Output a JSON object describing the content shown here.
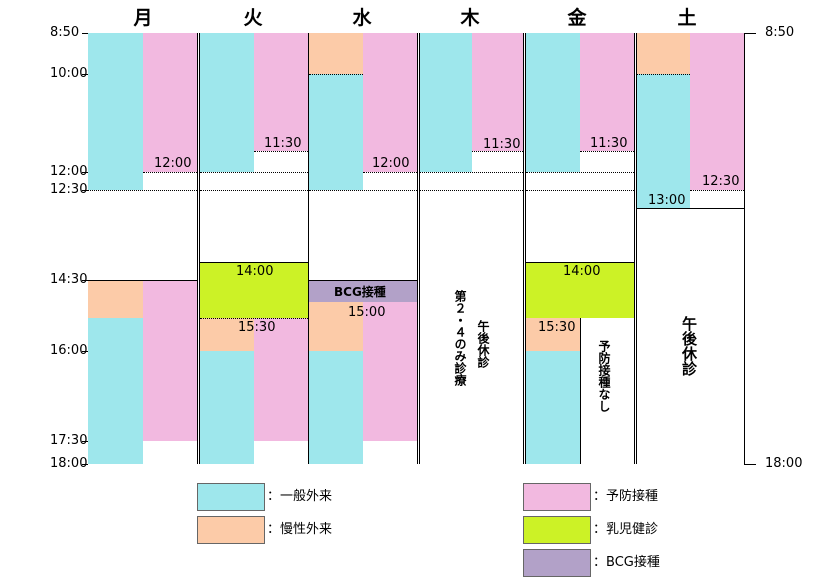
{
  "days": [
    "月",
    "火",
    "水",
    "木",
    "金",
    "土"
  ],
  "time_labels_left": [
    "8:50",
    "10:00",
    "12:00",
    "12:30",
    "14:30",
    "16:00",
    "17:30",
    "18:00"
  ],
  "time_labels_right": [
    "8:50",
    "18:00"
  ],
  "slot_labels": {
    "mon_1200": "12:00",
    "tue_1130": "11:30",
    "wed_1200": "12:00",
    "thu_1130": "11:30",
    "fri_1130": "11:30",
    "sat_1230": "12:30",
    "sat_1300": "13:00",
    "tue_1400": "14:00",
    "tue_1530": "15:30",
    "wed_bcg": "BCG接種",
    "wed_1500": "15:00",
    "fri_1400": "14:00",
    "fri_1530": "15:30"
  },
  "notes": {
    "thu_afternoon": "午後休診",
    "thu_only": "第２・４のみ診療",
    "fri_no_vaccine": "予防接種なし",
    "sat_afternoon": "午後休診"
  },
  "legend": [
    {
      "key": "ippan",
      "label": "：一般外来",
      "color": "#9ee7ec"
    },
    {
      "key": "yobo",
      "label": "：予防接種",
      "color": "#f2b9e0"
    },
    {
      "key": "mansei",
      "label": "：慢性外来",
      "color": "#fccba8"
    },
    {
      "key": "nyuji",
      "label": "：乳児健診",
      "color": "#ccf226"
    },
    {
      "key": "bcg",
      "label": "：BCG接種",
      "color": "#b2a1c8"
    }
  ]
}
